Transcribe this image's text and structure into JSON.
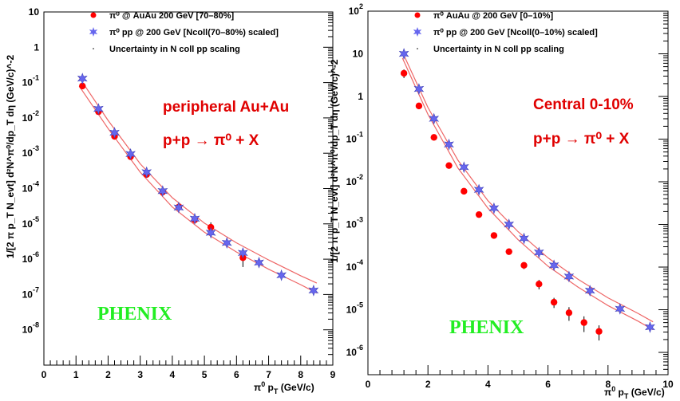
{
  "chart_data": [
    {
      "type": "scatter",
      "x_scale": "linear",
      "y_scale": "log",
      "xlim": [
        0,
        9
      ],
      "ylim": [
        1e-09,
        10
      ],
      "x_ticks": [
        0,
        1,
        2,
        3,
        4,
        5,
        6,
        7,
        8,
        9
      ],
      "x_tick_labels": [
        "0",
        "1",
        "2",
        "3",
        "4",
        "5",
        "6",
        "7",
        "8",
        "9"
      ],
      "y_ticks": [
        1e-08,
        1e-07,
        1e-06,
        1e-05,
        0.0001,
        0.001,
        0.01,
        0.1,
        1,
        10
      ],
      "y_tick_labels": [
        {
          "base": "10",
          "exp": "-8"
        },
        {
          "base": "10",
          "exp": "-7"
        },
        {
          "base": "10",
          "exp": "-6"
        },
        {
          "base": "10",
          "exp": "-5"
        },
        {
          "base": "10",
          "exp": "-4"
        },
        {
          "base": "10",
          "exp": "-3"
        },
        {
          "base": "10",
          "exp": "-2"
        },
        {
          "base": "10",
          "exp": "-1"
        },
        {
          "base": "",
          "exp": "1"
        },
        {
          "base": "",
          "exp": "10"
        }
      ],
      "xlabel": {
        "pre": "π",
        "sup": "0",
        "mid": " p",
        "sub": "T",
        "post": " (GeV/c)"
      },
      "ylabel": "1/[2 π p_T N_evt] d²N^π⁰/dp_T dη (GeV/c)^-2",
      "legend_position": "top",
      "legend": [
        {
          "label": "π⁰ @ AuAu 200 GeV [70–80%]",
          "marker": "circle",
          "color": "#ff0000"
        },
        {
          "label": "π⁰ pp @ 200 GeV [Ncoll(70–80%) scaled]",
          "marker": "star",
          "color": "#6666ee"
        },
        {
          "label": "Uncertainty in N coll pp scaling",
          "marker": "none",
          "color": "#000000"
        }
      ],
      "annotations": [
        "peripheral Au+Au",
        "p+p → π⁰ + X"
      ],
      "watermark": "PHENIX",
      "series": [
        {
          "name": "π⁰ @ AuAu 200 GeV [70–80%]",
          "marker": "circle",
          "color": "#ff0000",
          "x": [
            1.2,
            1.7,
            2.2,
            2.7,
            3.2,
            3.7,
            4.2,
            4.7,
            5.2,
            6.2
          ],
          "y": [
            0.08,
            0.015,
            0.003,
            0.0008,
            0.00025,
            8e-05,
            3e-05,
            1.3e-05,
            8e-06,
            1.1e-06
          ],
          "yerr": [
            0,
            0,
            0,
            0,
            0,
            0,
            0,
            3e-06,
            3e-06,
            5e-07
          ]
        },
        {
          "name": "π⁰ pp @ 200 GeV [Ncoll(70–80%) scaled]",
          "marker": "star",
          "color": "#6666ee",
          "x": [
            1.2,
            1.7,
            2.2,
            2.7,
            3.2,
            3.7,
            4.2,
            4.7,
            5.2,
            5.7,
            6.2,
            6.7,
            7.4,
            8.4
          ],
          "y": [
            0.13,
            0.018,
            0.0038,
            0.00095,
            0.00029,
            8.5e-05,
            2.9e-05,
            1.4e-05,
            5.6e-06,
            2.9e-06,
            1.5e-06,
            8e-07,
            3.5e-07,
            1.3e-07
          ],
          "yerr": [
            0,
            0,
            0,
            0,
            0,
            0,
            0,
            0,
            0,
            0,
            0,
            0,
            0,
            0
          ]
        }
      ],
      "bands": [
        {
          "name": "Uncertainty in N coll pp scaling",
          "color": "#ee6666",
          "x": [
            1.1,
            2,
            3,
            4,
            5,
            6,
            7,
            8,
            8.5
          ],
          "upper": [
            0.14,
            0.0085,
            0.0005,
            5.5e-05,
            1.05e-05,
            2.9e-06,
            9.5e-07,
            3.4e-07,
            2.1e-07
          ],
          "lower": [
            0.08,
            0.005,
            0.00029,
            3e-05,
            5.8e-06,
            1.6e-06,
            5.2e-07,
            1.9e-07,
            1.1e-07
          ]
        }
      ]
    },
    {
      "type": "scatter",
      "x_scale": "linear",
      "y_scale": "log",
      "xlim": [
        0,
        10
      ],
      "ylim": [
        3e-07,
        100
      ],
      "x_ticks": [
        0,
        2,
        4,
        6,
        8,
        10
      ],
      "x_tick_labels": [
        "0",
        "2",
        "4",
        "6",
        "8",
        "10"
      ],
      "y_ticks": [
        1e-06,
        1e-05,
        0.0001,
        0.001,
        0.01,
        0.1,
        1,
        10,
        100
      ],
      "y_tick_labels": [
        {
          "base": "10",
          "exp": "-6"
        },
        {
          "base": "10",
          "exp": "-5"
        },
        {
          "base": "10",
          "exp": "-4"
        },
        {
          "base": "10",
          "exp": "-3"
        },
        {
          "base": "10",
          "exp": "-2"
        },
        {
          "base": "10",
          "exp": "-1"
        },
        {
          "base": "",
          "exp": "1"
        },
        {
          "base": "",
          "exp": "10"
        },
        {
          "base": "10",
          "exp": "2"
        }
      ],
      "xlabel": {
        "pre": "π",
        "sup": "0",
        "mid": " p",
        "sub": "T",
        "post": " (GeV/c)"
      },
      "ylabel": "1/[2 π p_T N_evt] d²N^π⁰/dp_T dη (GeV/c)^-2",
      "legend_position": "top",
      "legend": [
        {
          "label": "π⁰ AuAu @ 200 GeV [0–10%]",
          "marker": "circle",
          "color": "#ff0000"
        },
        {
          "label": "π⁰ pp @ 200 GeV [Ncoll(0–10%) scaled]",
          "marker": "star",
          "color": "#6666ee"
        },
        {
          "label": "Uncertainty in N coll pp scaling",
          "marker": "none",
          "color": "#000000"
        }
      ],
      "annotations": [
        "Central 0-10%",
        "p+p → π⁰ + X"
      ],
      "watermark": "PHENIX",
      "series": [
        {
          "name": "π⁰ AuAu @ 200 GeV [0–10%]",
          "marker": "circle",
          "color": "#ff0000",
          "x": [
            1.2,
            1.7,
            2.2,
            2.7,
            3.2,
            3.7,
            4.2,
            4.7,
            5.2,
            5.7,
            6.2,
            6.7,
            7.2,
            7.7
          ],
          "y": [
            3.5,
            0.6,
            0.11,
            0.024,
            0.006,
            0.0017,
            0.00055,
            0.00023,
            0.00011,
            4e-05,
            1.5e-05,
            8.5e-06,
            5e-06,
            3.1e-06
          ],
          "yerr": [
            0.8,
            0,
            0,
            0,
            0,
            0,
            0,
            0,
            2e-05,
            1e-05,
            4e-06,
            3e-06,
            2e-06,
            1.2e-06
          ]
        },
        {
          "name": "π⁰ pp @ 200 GeV [Ncoll(0–10%) scaled]",
          "marker": "star",
          "color": "#6666ee",
          "x": [
            1.2,
            1.7,
            2.2,
            2.7,
            3.2,
            3.7,
            4.2,
            4.7,
            5.2,
            5.7,
            6.2,
            6.7,
            7.4,
            8.4,
            9.4
          ],
          "y": [
            10,
            1.5,
            0.3,
            0.075,
            0.022,
            0.0065,
            0.0024,
            0.001,
            0.00047,
            0.00022,
            0.00011,
            6e-05,
            2.8e-05,
            1.05e-05,
            3.9e-06
          ],
          "yerr": [
            0,
            0,
            0,
            0,
            0,
            0,
            0,
            0,
            0,
            0,
            0,
            0,
            0,
            0,
            8e-07
          ]
        }
      ],
      "bands": [
        {
          "name": "Uncertainty in N coll pp scaling",
          "color": "#ee6666",
          "x": [
            1.15,
            2,
            3,
            4,
            5,
            6,
            7,
            8,
            9,
            9.5
          ],
          "upper": [
            11,
            0.55,
            0.032,
            0.0036,
            0.00068,
            0.000165,
            5.2e-05,
            1.9e-05,
            8.2e-06,
            5.2e-06
          ],
          "lower": [
            8,
            0.38,
            0.021,
            0.0024,
            0.00044,
            0.000105,
            3.4e-05,
            1.25e-05,
            5.4e-06,
            3.4e-06
          ]
        }
      ]
    }
  ]
}
